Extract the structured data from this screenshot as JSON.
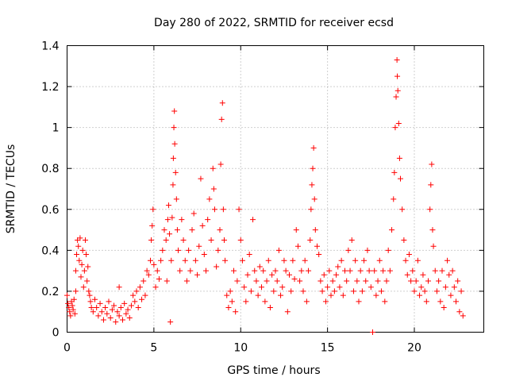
{
  "chart_data": {
    "type": "scatter",
    "title": "Day 280 of 2022, SRMTID for receiver ecsd",
    "xlabel": "GPS time / hours",
    "ylabel": "SRMTID / TECUs",
    "xlim": [
      0,
      24
    ],
    "ylim": [
      0,
      1.4
    ],
    "xticks": [
      0,
      5,
      10,
      15,
      20
    ],
    "xtick_labels": [
      "0",
      "5",
      "10",
      "15",
      "20"
    ],
    "yticks": [
      0,
      0.2,
      0.4,
      0.6,
      0.8,
      1.0,
      1.2,
      1.4
    ],
    "ytick_labels": [
      "0",
      "0.2",
      "0.4",
      "0.6",
      "0.8",
      "1",
      "1.2",
      "1.4"
    ],
    "grid": true,
    "marker": "plus",
    "color": "#ff0000",
    "series": [
      {
        "name": "SRMTID",
        "points": [
          [
            0.0,
            0.18
          ],
          [
            0.05,
            0.14
          ],
          [
            0.1,
            0.12
          ],
          [
            0.15,
            0.1
          ],
          [
            0.2,
            0.08
          ],
          [
            0.25,
            0.15
          ],
          [
            0.3,
            0.13
          ],
          [
            0.35,
            0.11
          ],
          [
            0.4,
            0.16
          ],
          [
            0.45,
            0.09
          ],
          [
            0.5,
            0.2
          ],
          [
            0.5,
            0.3
          ],
          [
            0.55,
            0.38
          ],
          [
            0.6,
            0.45
          ],
          [
            0.65,
            0.42
          ],
          [
            0.7,
            0.35
          ],
          [
            0.75,
            0.46
          ],
          [
            0.8,
            0.27
          ],
          [
            0.85,
            0.33
          ],
          [
            0.9,
            0.4
          ],
          [
            0.95,
            0.22
          ],
          [
            1.0,
            0.3
          ],
          [
            1.05,
            0.45
          ],
          [
            1.1,
            0.38
          ],
          [
            1.15,
            0.25
          ],
          [
            1.2,
            0.32
          ],
          [
            1.25,
            0.2
          ],
          [
            1.3,
            0.18
          ],
          [
            1.35,
            0.15
          ],
          [
            1.4,
            0.12
          ],
          [
            1.5,
            0.1
          ],
          [
            1.6,
            0.16
          ],
          [
            1.7,
            0.12
          ],
          [
            1.8,
            0.08
          ],
          [
            1.9,
            0.14
          ],
          [
            2.0,
            0.1
          ],
          [
            2.1,
            0.06
          ],
          [
            2.2,
            0.12
          ],
          [
            2.3,
            0.09
          ],
          [
            2.4,
            0.15
          ],
          [
            2.5,
            0.07
          ],
          [
            2.6,
            0.11
          ],
          [
            2.7,
            0.13
          ],
          [
            2.8,
            0.05
          ],
          [
            2.9,
            0.1
          ],
          [
            3.0,
            0.08
          ],
          [
            3.0,
            0.22
          ],
          [
            3.1,
            0.12
          ],
          [
            3.2,
            0.06
          ],
          [
            3.3,
            0.14
          ],
          [
            3.4,
            0.09
          ],
          [
            3.5,
            0.11
          ],
          [
            3.6,
            0.07
          ],
          [
            3.7,
            0.13
          ],
          [
            3.8,
            0.18
          ],
          [
            3.9,
            0.15
          ],
          [
            4.0,
            0.2
          ],
          [
            4.1,
            0.12
          ],
          [
            4.2,
            0.22
          ],
          [
            4.3,
            0.16
          ],
          [
            4.4,
            0.25
          ],
          [
            4.5,
            0.18
          ],
          [
            4.6,
            0.3
          ],
          [
            4.7,
            0.28
          ],
          [
            4.8,
            0.35
          ],
          [
            4.85,
            0.45
          ],
          [
            4.9,
            0.52
          ],
          [
            4.95,
            0.6
          ],
          [
            5.0,
            0.33
          ],
          [
            5.1,
            0.22
          ],
          [
            5.2,
            0.3
          ],
          [
            5.3,
            0.26
          ],
          [
            5.4,
            0.35
          ],
          [
            5.5,
            0.4
          ],
          [
            5.6,
            0.5
          ],
          [
            5.7,
            0.45
          ],
          [
            5.75,
            0.25
          ],
          [
            5.8,
            0.55
          ],
          [
            5.85,
            0.62
          ],
          [
            5.9,
            0.48
          ],
          [
            5.95,
            0.05
          ],
          [
            6.0,
            0.35
          ],
          [
            6.05,
            0.56
          ],
          [
            6.1,
            0.72
          ],
          [
            6.12,
            0.85
          ],
          [
            6.15,
            1.0
          ],
          [
            6.18,
            1.08
          ],
          [
            6.2,
            0.92
          ],
          [
            6.25,
            0.78
          ],
          [
            6.3,
            0.65
          ],
          [
            6.35,
            0.5
          ],
          [
            6.4,
            0.4
          ],
          [
            6.5,
            0.3
          ],
          [
            6.6,
            0.55
          ],
          [
            6.7,
            0.45
          ],
          [
            6.8,
            0.35
          ],
          [
            6.9,
            0.25
          ],
          [
            7.0,
            0.4
          ],
          [
            7.1,
            0.3
          ],
          [
            7.2,
            0.5
          ],
          [
            7.3,
            0.58
          ],
          [
            7.4,
            0.35
          ],
          [
            7.5,
            0.28
          ],
          [
            7.6,
            0.42
          ],
          [
            7.7,
            0.75
          ],
          [
            7.8,
            0.52
          ],
          [
            7.9,
            0.38
          ],
          [
            8.0,
            0.3
          ],
          [
            8.1,
            0.55
          ],
          [
            8.2,
            0.65
          ],
          [
            8.3,
            0.45
          ],
          [
            8.4,
            0.8
          ],
          [
            8.45,
            0.7
          ],
          [
            8.5,
            0.6
          ],
          [
            8.6,
            0.32
          ],
          [
            8.7,
            0.4
          ],
          [
            8.8,
            0.5
          ],
          [
            8.85,
            0.82
          ],
          [
            8.9,
            1.04
          ],
          [
            8.95,
            1.12
          ],
          [
            9.0,
            0.6
          ],
          [
            9.05,
            0.45
          ],
          [
            9.1,
            0.35
          ],
          [
            9.2,
            0.18
          ],
          [
            9.3,
            0.12
          ],
          [
            9.4,
            0.2
          ],
          [
            9.5,
            0.15
          ],
          [
            9.6,
            0.3
          ],
          [
            9.7,
            0.1
          ],
          [
            9.8,
            0.25
          ],
          [
            9.9,
            0.6
          ],
          [
            10.0,
            0.45
          ],
          [
            10.1,
            0.35
          ],
          [
            10.2,
            0.22
          ],
          [
            10.3,
            0.15
          ],
          [
            10.4,
            0.28
          ],
          [
            10.5,
            0.38
          ],
          [
            10.6,
            0.2
          ],
          [
            10.7,
            0.55
          ],
          [
            10.8,
            0.3
          ],
          [
            10.9,
            0.25
          ],
          [
            11.0,
            0.18
          ],
          [
            11.1,
            0.32
          ],
          [
            11.2,
            0.22
          ],
          [
            11.3,
            0.3
          ],
          [
            11.4,
            0.15
          ],
          [
            11.5,
            0.25
          ],
          [
            11.6,
            0.35
          ],
          [
            11.7,
            0.12
          ],
          [
            11.8,
            0.28
          ],
          [
            11.9,
            0.2
          ],
          [
            12.0,
            0.3
          ],
          [
            12.1,
            0.25
          ],
          [
            12.2,
            0.4
          ],
          [
            12.3,
            0.18
          ],
          [
            12.4,
            0.22
          ],
          [
            12.5,
            0.35
          ],
          [
            12.6,
            0.3
          ],
          [
            12.7,
            0.1
          ],
          [
            12.8,
            0.28
          ],
          [
            12.9,
            0.2
          ],
          [
            13.0,
            0.35
          ],
          [
            13.1,
            0.26
          ],
          [
            13.2,
            0.5
          ],
          [
            13.3,
            0.42
          ],
          [
            13.4,
            0.25
          ],
          [
            13.5,
            0.3
          ],
          [
            13.6,
            0.2
          ],
          [
            13.7,
            0.35
          ],
          [
            13.8,
            0.15
          ],
          [
            13.9,
            0.3
          ],
          [
            14.0,
            0.45
          ],
          [
            14.05,
            0.6
          ],
          [
            14.1,
            0.72
          ],
          [
            14.15,
            0.8
          ],
          [
            14.2,
            0.9
          ],
          [
            14.25,
            0.65
          ],
          [
            14.3,
            0.5
          ],
          [
            14.4,
            0.42
          ],
          [
            14.5,
            0.38
          ],
          [
            14.6,
            0.25
          ],
          [
            14.7,
            0.2
          ],
          [
            14.8,
            0.28
          ],
          [
            14.9,
            0.15
          ],
          [
            15.0,
            0.22
          ],
          [
            15.1,
            0.3
          ],
          [
            15.2,
            0.18
          ],
          [
            15.3,
            0.25
          ],
          [
            15.4,
            0.2
          ],
          [
            15.5,
            0.28
          ],
          [
            15.6,
            0.32
          ],
          [
            15.7,
            0.22
          ],
          [
            15.8,
            0.35
          ],
          [
            15.9,
            0.18
          ],
          [
            16.0,
            0.3
          ],
          [
            16.1,
            0.25
          ],
          [
            16.2,
            0.4
          ],
          [
            16.3,
            0.3
          ],
          [
            16.4,
            0.45
          ],
          [
            16.5,
            0.2
          ],
          [
            16.6,
            0.35
          ],
          [
            16.7,
            0.25
          ],
          [
            16.8,
            0.15
          ],
          [
            16.9,
            0.3
          ],
          [
            17.0,
            0.2
          ],
          [
            17.1,
            0.35
          ],
          [
            17.2,
            0.25
          ],
          [
            17.3,
            0.4
          ],
          [
            17.4,
            0.3
          ],
          [
            17.5,
            0.22
          ],
          [
            17.6,
            0.0
          ],
          [
            17.7,
            0.3
          ],
          [
            17.8,
            0.18
          ],
          [
            17.9,
            0.25
          ],
          [
            18.0,
            0.35
          ],
          [
            18.1,
            0.2
          ],
          [
            18.2,
            0.3
          ],
          [
            18.3,
            0.15
          ],
          [
            18.4,
            0.25
          ],
          [
            18.5,
            0.4
          ],
          [
            18.6,
            0.3
          ],
          [
            18.7,
            0.5
          ],
          [
            18.8,
            0.65
          ],
          [
            18.85,
            0.78
          ],
          [
            18.9,
            1.0
          ],
          [
            18.95,
            1.15
          ],
          [
            19.0,
            1.33
          ],
          [
            19.02,
            1.25
          ],
          [
            19.05,
            1.18
          ],
          [
            19.1,
            1.02
          ],
          [
            19.15,
            0.85
          ],
          [
            19.2,
            0.75
          ],
          [
            19.3,
            0.6
          ],
          [
            19.4,
            0.45
          ],
          [
            19.5,
            0.35
          ],
          [
            19.6,
            0.28
          ],
          [
            19.7,
            0.38
          ],
          [
            19.8,
            0.25
          ],
          [
            19.9,
            0.3
          ],
          [
            20.0,
            0.2
          ],
          [
            20.1,
            0.25
          ],
          [
            20.2,
            0.35
          ],
          [
            20.3,
            0.18
          ],
          [
            20.4,
            0.22
          ],
          [
            20.5,
            0.28
          ],
          [
            20.6,
            0.2
          ],
          [
            20.7,
            0.15
          ],
          [
            20.8,
            0.25
          ],
          [
            20.9,
            0.6
          ],
          [
            20.95,
            0.72
          ],
          [
            21.0,
            0.82
          ],
          [
            21.05,
            0.5
          ],
          [
            21.1,
            0.42
          ],
          [
            21.2,
            0.3
          ],
          [
            21.3,
            0.2
          ],
          [
            21.4,
            0.25
          ],
          [
            21.5,
            0.15
          ],
          [
            21.6,
            0.3
          ],
          [
            21.7,
            0.12
          ],
          [
            21.8,
            0.22
          ],
          [
            21.9,
            0.35
          ],
          [
            22.0,
            0.28
          ],
          [
            22.1,
            0.18
          ],
          [
            22.2,
            0.3
          ],
          [
            22.3,
            0.22
          ],
          [
            22.4,
            0.15
          ],
          [
            22.5,
            0.25
          ],
          [
            22.6,
            0.1
          ],
          [
            22.7,
            0.2
          ],
          [
            22.8,
            0.08
          ]
        ]
      }
    ]
  }
}
